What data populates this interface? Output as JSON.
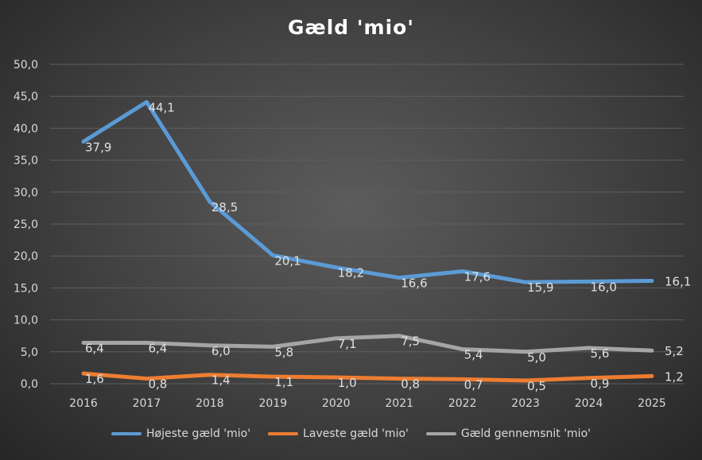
{
  "chart_data": {
    "type": "line",
    "title": "Gæld 'mio'",
    "xlabel": "",
    "ylabel": "",
    "categories": [
      "2016",
      "2017",
      "2018",
      "2019",
      "2020",
      "2021",
      "2022",
      "2023",
      "2024",
      "2025"
    ],
    "ylim": [
      0,
      50
    ],
    "yticks": [
      "0,0",
      "5,0",
      "10,0",
      "15,0",
      "20,0",
      "25,0",
      "30,0",
      "35,0",
      "40,0",
      "45,0",
      "50,0"
    ],
    "grid": true,
    "legend_position": "bottom",
    "series": [
      {
        "name": "Højeste gæld 'mio'",
        "color": "#5b9bd5",
        "values": [
          37.9,
          44.1,
          28.5,
          20.1,
          18.2,
          16.6,
          17.6,
          15.9,
          16.0,
          16.1
        ],
        "labels": [
          "37,9",
          "44,1",
          "28,5",
          "20,1",
          "18,2",
          "16,6",
          "17,6",
          "15,9",
          "16,0",
          "16,1"
        ]
      },
      {
        "name": "Laveste gæld 'mio'",
        "color": "#ed7d31",
        "values": [
          1.6,
          0.8,
          1.4,
          1.1,
          1.0,
          0.8,
          0.7,
          0.5,
          0.9,
          1.2
        ],
        "labels": [
          "1,6",
          "0,8",
          "1,4",
          "1,1",
          "1,0",
          "0,8",
          "0,7",
          "0,5",
          "0,9",
          "1,2"
        ]
      },
      {
        "name": "Gæld gennemsnit 'mio'",
        "color": "#a5a5a5",
        "values": [
          6.4,
          6.4,
          6.0,
          5.8,
          7.1,
          7.5,
          5.4,
          5.0,
          5.6,
          5.2
        ],
        "labels": [
          "6,4",
          "6,4",
          "6,0",
          "5,8",
          "7,1",
          "7,5",
          "5,4",
          "5,0",
          "5,6",
          "5,2"
        ]
      }
    ]
  }
}
